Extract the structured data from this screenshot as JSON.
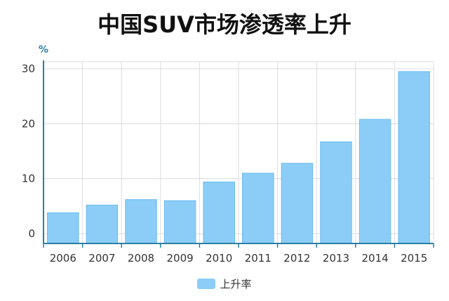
{
  "title": "中国SUV市场渗透率上升",
  "chart_data": {
    "type": "bar",
    "title": "中国SUV市场渗透率上升",
    "ylabel": "%",
    "xlabel": "",
    "categories": [
      "2006",
      "2007",
      "2008",
      "2009",
      "2010",
      "2011",
      "2012",
      "2013",
      "2014",
      "2015"
    ],
    "series": [
      {
        "name": "上升率",
        "values": [
          3.8,
          5.2,
          6.2,
          6.0,
          9.4,
          11.0,
          12.8,
          16.7,
          20.8,
          29.5
        ]
      }
    ],
    "ylim": [
      0,
      30
    ],
    "yticks": [
      0,
      10,
      20,
      30
    ],
    "grid": true,
    "legend_position": "bottom",
    "colors": {
      "bar": "#8bcdf7",
      "bar_edge": "#6bbbf0",
      "axis": "#2c7ea5",
      "grid": "#dcdcdc"
    }
  }
}
